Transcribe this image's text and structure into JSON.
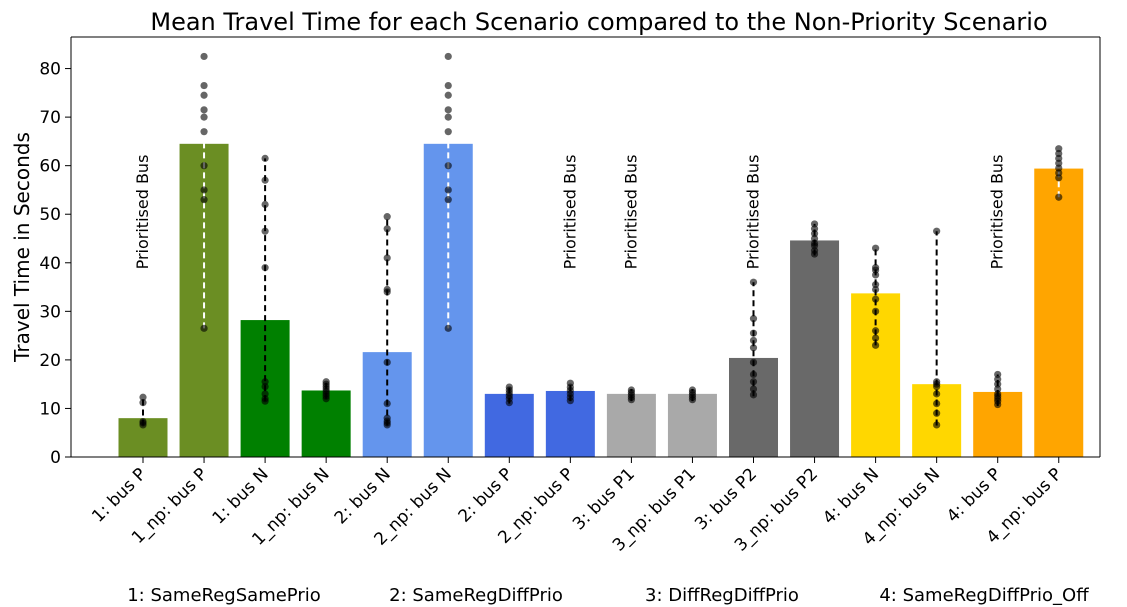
{
  "chart_data": {
    "type": "bar",
    "title": "Mean Travel Time for each Scenario compared to the Non-Priority Scenario",
    "xlabel": "",
    "ylabel": "Travel Time in Seconds",
    "ylim": [
      0,
      86.5
    ],
    "yticks": [
      0,
      10,
      20,
      30,
      40,
      50,
      60,
      70,
      80
    ],
    "grid": false,
    "categories": [
      "1: bus P",
      "1_np: bus P",
      "1: bus N",
      "1_np: bus N",
      "2: bus N",
      "2_np: bus N",
      "2: bus P",
      "2_np: bus P",
      "3: bus P1",
      "3_np: bus P1",
      "3: bus P2",
      "3_np: bus P2",
      "4: bus N",
      "4_np: bus N",
      "4: bus P",
      "4_np: bus P"
    ],
    "values": [
      8,
      64.5,
      28.2,
      13.7,
      21.6,
      64.5,
      13,
      13.6,
      13,
      13,
      20.4,
      44.6,
      33.7,
      15,
      13.4,
      59.4
    ],
    "colors": [
      "#6b8e23",
      "#6b8e23",
      "#008000",
      "#008000",
      "#6495ed",
      "#6495ed",
      "#4169e1",
      "#4169e1",
      "#a9a9a9",
      "#a9a9a9",
      "#696969",
      "#696969",
      "#ffd700",
      "#ffd700",
      "#ffa500",
      "#ffa500"
    ],
    "ranges": [
      [
        6.5,
        12.5
      ],
      [
        26.5,
        82.5
      ],
      [
        11.5,
        61.5
      ],
      [
        12,
        15.5
      ],
      [
        6.5,
        49.5
      ],
      [
        26.5,
        82.5
      ],
      [
        11,
        14.5
      ],
      [
        11.5,
        15.5
      ],
      [
        11.5,
        14
      ],
      [
        11.5,
        14
      ],
      [
        12.5,
        36
      ],
      [
        41.5,
        48
      ],
      [
        23,
        43
      ],
      [
        6.5,
        46.5
      ],
      [
        10.5,
        17
      ],
      [
        53.5,
        63.5
      ]
    ],
    "whisker_colors": [
      "#000000",
      "#ffffff",
      "#000000",
      "#000000",
      "#000000",
      "#ffffff",
      "#000000",
      "#000000",
      "#000000",
      "#000000",
      "#000000",
      "#000000",
      "#000000",
      "#000000",
      "#000000",
      "#ffffff"
    ],
    "points": [
      [
        6.6,
        7.0,
        7.3,
        11.2,
        12.3
      ],
      [
        26.5,
        53.0,
        55.0,
        60.0,
        67.0,
        70.0,
        71.5,
        74.5,
        76.5,
        82.5
      ],
      [
        11.5,
        12.0,
        13.0,
        14.5,
        15.5,
        39.0,
        46.5,
        52.0,
        57.0,
        61.5
      ],
      [
        12.0,
        12.5,
        13.0,
        13.5,
        14.0,
        14.5,
        15.0,
        15.5
      ],
      [
        6.6,
        7.0,
        7.4,
        8.0,
        11.0,
        19.5,
        34.0,
        34.5,
        41.0,
        47.0,
        49.5
      ],
      [
        26.5,
        53.0,
        55.0,
        60.0,
        67.0,
        70.0,
        71.5,
        74.5,
        76.5,
        82.5
      ],
      [
        11.2,
        12.0,
        12.6,
        13.2,
        13.8,
        14.4
      ],
      [
        11.6,
        12.3,
        13.0,
        13.7,
        14.4,
        15.2
      ],
      [
        11.8,
        12.3,
        12.8,
        13.3,
        13.8
      ],
      [
        11.8,
        12.3,
        12.8,
        13.3,
        13.8
      ],
      [
        12.8,
        14.0,
        15.5,
        17.0,
        19.5,
        22.5,
        24.0,
        25.5,
        28.5,
        36.0
      ],
      [
        41.8,
        42.5,
        43.5,
        44.0,
        45.0,
        46.0,
        47.0,
        48.0
      ],
      [
        23.0,
        24.5,
        26.0,
        30.0,
        32.5,
        34.5,
        35.5,
        37.5,
        38.5,
        39.0,
        43.0
      ],
      [
        6.6,
        9.0,
        11.0,
        13.0,
        14.5,
        15.0,
        15.5,
        46.5
      ],
      [
        10.8,
        11.5,
        12.0,
        12.5,
        13.0,
        14.0,
        15.0,
        16.0,
        17.0
      ],
      [
        53.5,
        57.5,
        58.5,
        59.5,
        60.5,
        61.5,
        62.5,
        63.5
      ]
    ],
    "annotations": [
      {
        "text": "Prioritised Bus",
        "category_index": 0
      },
      {
        "text": "Prioritised Bus",
        "category_index": 7
      },
      {
        "text": "Prioritised Bus",
        "category_index": 8
      },
      {
        "text": "Prioritised Bus",
        "category_index": 10
      },
      {
        "text": "Prioritised Bus",
        "category_index": 14
      }
    ],
    "scenario_legend": [
      "1: SameRegSamePrio",
      "2: SameRegDiffPrio",
      "3: DiffRegDiffPrio",
      "4: SameRegDiffPrio_Off"
    ]
  }
}
